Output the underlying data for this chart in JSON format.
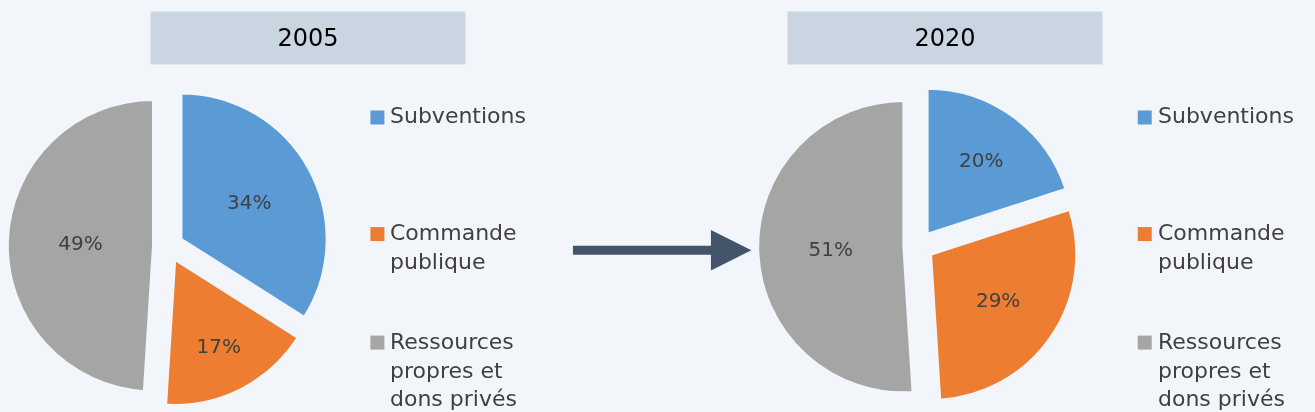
{
  "chart_data": [
    {
      "type": "pie",
      "title": "2005",
      "categories": [
        "Subventions",
        "Commande publique",
        "Ressources propres et dons privés"
      ],
      "values": [
        34,
        17,
        49
      ],
      "value_labels": [
        "34%",
        "17%",
        "49%"
      ],
      "colors": [
        "#5b9bd5",
        "#ed7d31",
        "#a5a5a5"
      ],
      "legend": "right"
    },
    {
      "type": "pie",
      "title": "2020",
      "categories": [
        "Subventions",
        "Commande publique",
        "Ressources propres et dons privés"
      ],
      "values": [
        20,
        29,
        51
      ],
      "value_labels": [
        "20%",
        "29%",
        "51%"
      ],
      "colors": [
        "#5b9bd5",
        "#ed7d31",
        "#a5a5a5"
      ],
      "legend": "right"
    }
  ]
}
